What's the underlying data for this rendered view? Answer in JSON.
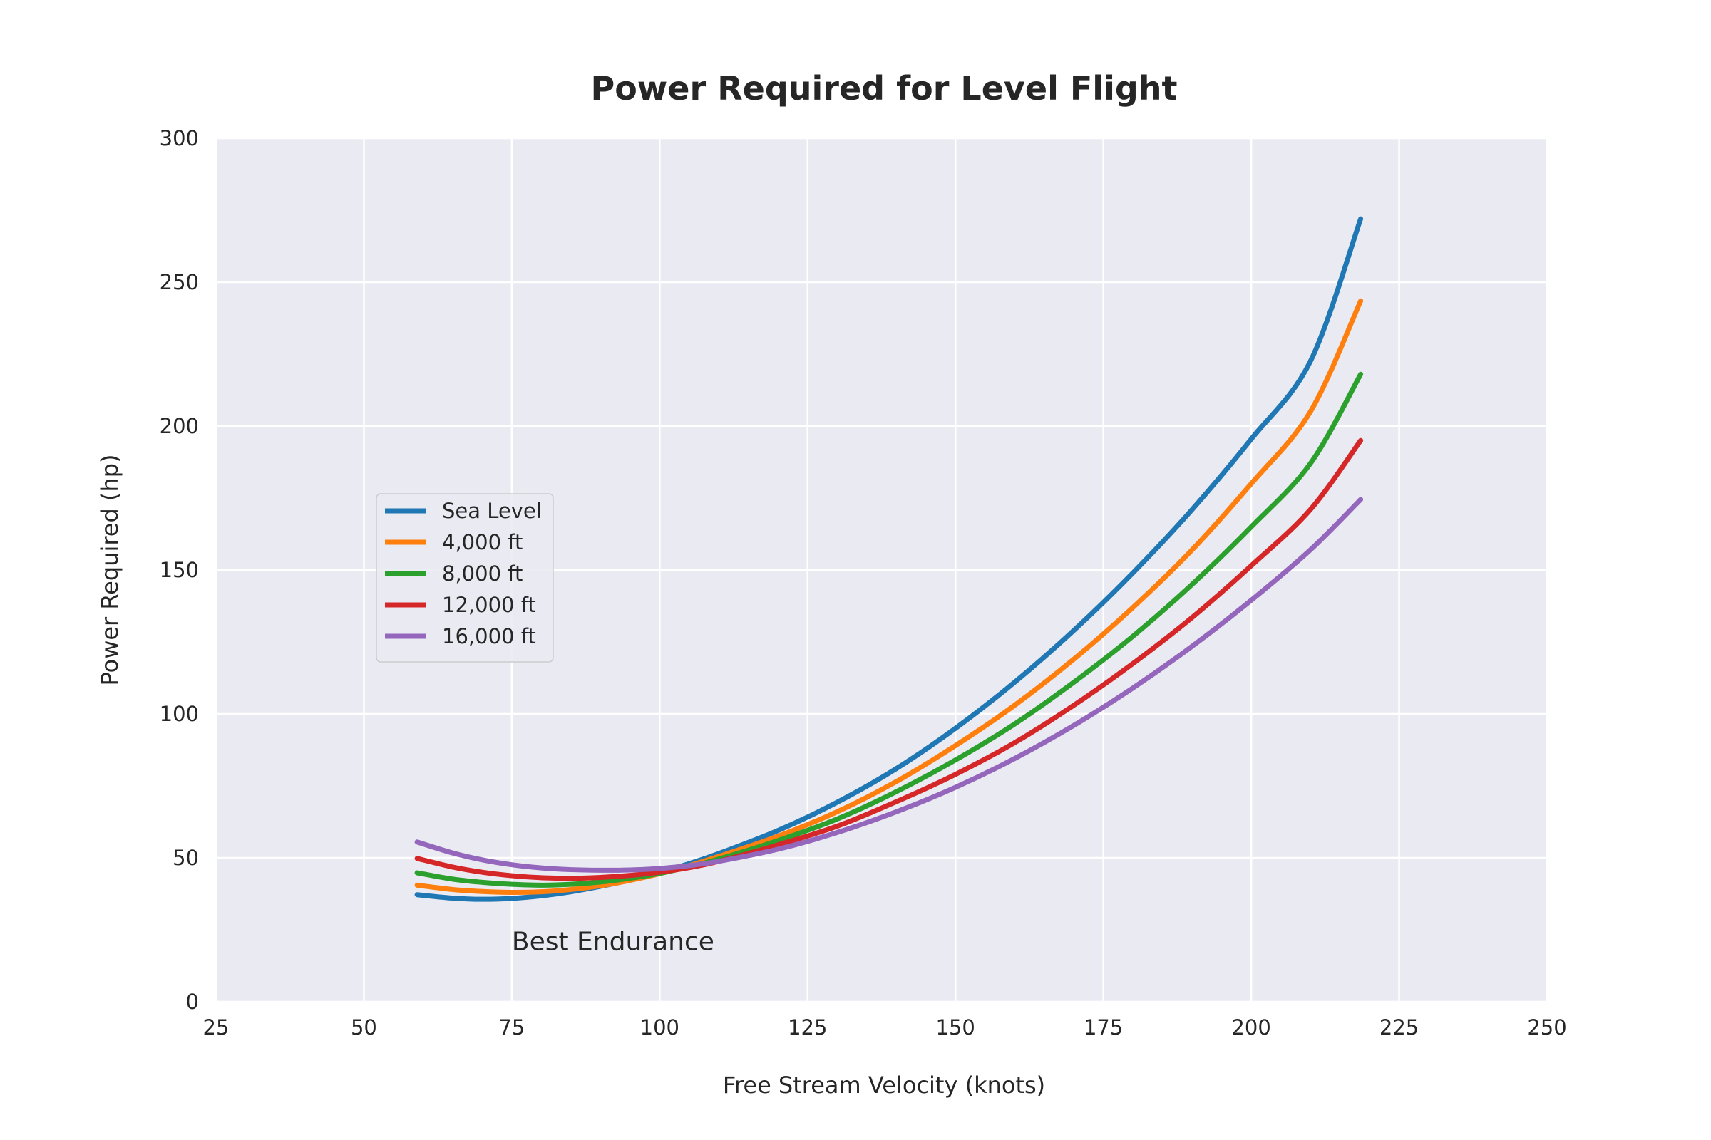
{
  "chart_data": {
    "type": "line",
    "title": "Power Required for Level Flight",
    "xlabel": "Free Stream Velocity (knots)",
    "ylabel": "Power Required (hp)",
    "xlim": [
      25,
      250
    ],
    "ylim": [
      0,
      300
    ],
    "xticks": [
      25,
      50,
      75,
      100,
      125,
      150,
      175,
      200,
      225,
      250
    ],
    "yticks": [
      0,
      50,
      100,
      150,
      200,
      250,
      300
    ],
    "grid": true,
    "background": "#eaeaf2",
    "legend_position": "center-left",
    "series": [
      {
        "name": "Sea Level",
        "color": "#1f77b4",
        "x": [
          59,
          65,
          70,
          75,
          80,
          85,
          90,
          95,
          100,
          105,
          110,
          120,
          130,
          140,
          150,
          160,
          170,
          180,
          190,
          200,
          210,
          218.5
        ],
        "y": [
          37.2,
          36.0,
          35.6,
          35.9,
          36.8,
          38.2,
          40.1,
          42.3,
          45.0,
          48.0,
          51.5,
          59.5,
          69.3,
          81.0,
          95.0,
          111.0,
          129.0,
          149.0,
          171.0,
          195.5,
          222.5,
          272.0
        ]
      },
      {
        "name": "4,000 ft",
        "color": "#ff7f0e",
        "x": [
          59,
          65,
          70,
          75,
          80,
          85,
          90,
          95,
          100,
          105,
          110,
          120,
          130,
          140,
          150,
          160,
          170,
          180,
          190,
          200,
          210,
          218.5
        ],
        "y": [
          40.5,
          39.0,
          38.3,
          38.0,
          38.2,
          39.0,
          40.3,
          42.2,
          44.5,
          47.3,
          50.5,
          57.5,
          66.0,
          76.5,
          89.0,
          103.0,
          119.0,
          137.0,
          157.0,
          180.0,
          205.0,
          243.5
        ]
      },
      {
        "name": "8,000 ft",
        "color": "#2ca02c",
        "x": [
          59,
          65,
          70,
          75,
          80,
          85,
          90,
          95,
          100,
          105,
          110,
          120,
          130,
          140,
          150,
          160,
          170,
          180,
          190,
          200,
          210,
          218.5
        ],
        "y": [
          44.8,
          42.6,
          41.5,
          40.8,
          40.5,
          40.8,
          41.6,
          42.9,
          44.6,
          46.9,
          49.6,
          56.0,
          63.5,
          73.0,
          84.0,
          96.5,
          111.0,
          127.0,
          145.0,
          165.0,
          187.0,
          218.0
        ]
      },
      {
        "name": "12,000 ft",
        "color": "#d62728",
        "x": [
          59,
          65,
          70,
          75,
          80,
          85,
          90,
          95,
          100,
          105,
          110,
          120,
          130,
          140,
          150,
          160,
          170,
          180,
          190,
          200,
          210,
          218.5
        ],
        "y": [
          49.8,
          46.8,
          45.0,
          43.8,
          43.1,
          42.9,
          43.2,
          43.9,
          45.0,
          46.6,
          48.8,
          54.5,
          61.0,
          69.5,
          79.0,
          90.0,
          103.0,
          117.5,
          133.5,
          151.5,
          171.0,
          195.0
        ]
      },
      {
        "name": "16,000 ft",
        "color": "#9467bd",
        "x": [
          59,
          65,
          70,
          75,
          80,
          85,
          90,
          95,
          100,
          105,
          110,
          120,
          130,
          140,
          150,
          160,
          170,
          180,
          190,
          200,
          210,
          218.5
        ],
        "y": [
          55.5,
          51.7,
          49.3,
          47.6,
          46.5,
          45.9,
          45.7,
          45.8,
          46.3,
          47.3,
          48.8,
          53.0,
          58.8,
          66.0,
          74.5,
          84.5,
          96.0,
          109.0,
          123.5,
          139.5,
          157.0,
          174.5
        ]
      }
    ],
    "annotations": [
      {
        "text": "Best Endurance",
        "x": 75,
        "y": 18
      }
    ]
  }
}
